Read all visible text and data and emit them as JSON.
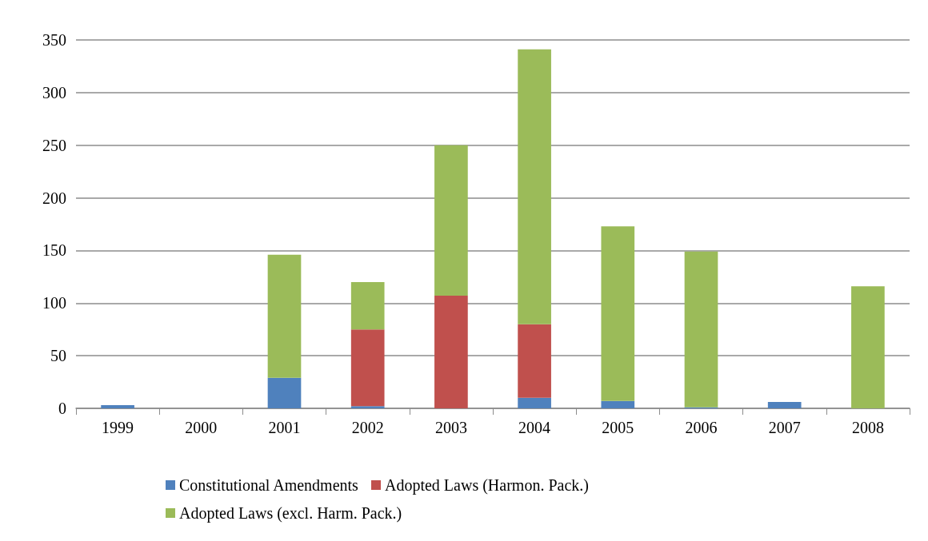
{
  "chart_data": {
    "type": "bar",
    "stacked": true,
    "categories": [
      "1999",
      "2000",
      "2001",
      "2002",
      "2003",
      "2004",
      "2005",
      "2006",
      "2007",
      "2008"
    ],
    "series": [
      {
        "name": "Constitutional Amendments",
        "color": "#4f81bd",
        "values": [
          3,
          0,
          29,
          2,
          0,
          10,
          7,
          1,
          6,
          0
        ]
      },
      {
        "name": "Adopted Laws (Harmon. Pack.)",
        "color": "#c0504d",
        "values": [
          0,
          0,
          0,
          73,
          107,
          70,
          0,
          0,
          0,
          0
        ]
      },
      {
        "name": "Adopted Laws (excl. Harm. Pack.)",
        "color": "#9bbb59",
        "values": [
          0,
          0,
          117,
          45,
          143,
          261,
          166,
          148,
          0,
          116
        ]
      }
    ],
    "ylim": [
      0,
      350
    ],
    "yticks": [
      0,
      50,
      100,
      150,
      200,
      250,
      300,
      350
    ],
    "grid": "y",
    "legend": "bottom"
  }
}
